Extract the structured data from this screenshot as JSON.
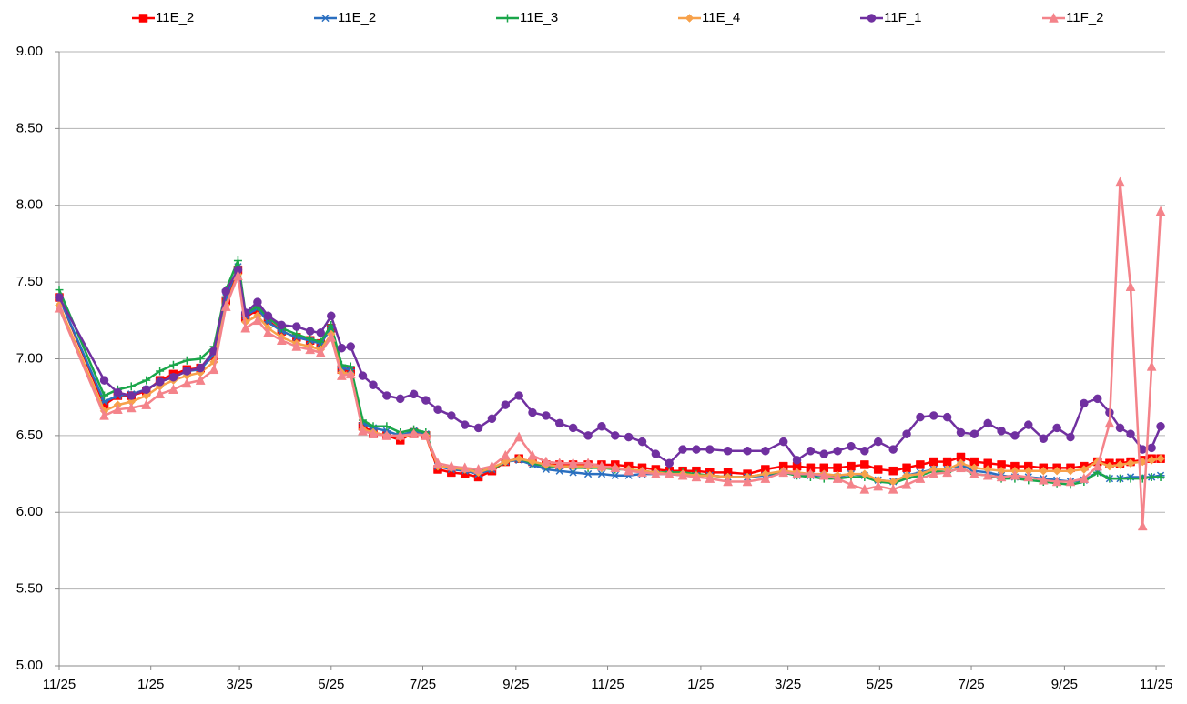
{
  "chart_data": {
    "type": "line",
    "xlim": [
      0,
      736
    ],
    "ylim": [
      5,
      9
    ],
    "yticks": [
      {
        "value": 5,
        "label": "5.00"
      },
      {
        "value": 5.5,
        "label": "5.50"
      },
      {
        "value": 6,
        "label": "6.00"
      },
      {
        "value": 6.5,
        "label": "6.50"
      },
      {
        "value": 7,
        "label": "7.00"
      },
      {
        "value": 7.5,
        "label": "7.50"
      },
      {
        "value": 8,
        "label": "8.00"
      },
      {
        "value": 8.5,
        "label": "8.50"
      },
      {
        "value": 9,
        "label": "9.00"
      }
    ],
    "xticks": [
      {
        "value": 0,
        "label": "11/25"
      },
      {
        "value": 61,
        "label": "1/25"
      },
      {
        "value": 120,
        "label": "3/25"
      },
      {
        "value": 181,
        "label": "5/25"
      },
      {
        "value": 242,
        "label": "7/25"
      },
      {
        "value": 304,
        "label": "9/25"
      },
      {
        "value": 365,
        "label": "11/25"
      },
      {
        "value": 427,
        "label": "1/25"
      },
      {
        "value": 485,
        "label": "3/25"
      },
      {
        "value": 546,
        "label": "5/25"
      },
      {
        "value": 607,
        "label": "7/25"
      },
      {
        "value": 669,
        "label": "9/25"
      },
      {
        "value": 730,
        "label": "11/25"
      }
    ],
    "grid": true,
    "legend": "top",
    "x": [
      0,
      30,
      39,
      48,
      58,
      67,
      76,
      85,
      94,
      103,
      111,
      119,
      124,
      132,
      139,
      148,
      158,
      167,
      174,
      181,
      188,
      194,
      202,
      209,
      218,
      227,
      236,
      244,
      252,
      261,
      270,
      279,
      288,
      297,
      306,
      315,
      324,
      333,
      342,
      352,
      361,
      370,
      379,
      388,
      397,
      406,
      415,
      424,
      433,
      445,
      458,
      470,
      482,
      491,
      500,
      509,
      518,
      527,
      536,
      545,
      555,
      564,
      573,
      582,
      591,
      600,
      609,
      618,
      627,
      636,
      645,
      655,
      664,
      673,
      682,
      691,
      699,
      706,
      713,
      721,
      727,
      733
    ],
    "series": [
      {
        "name": "11E_2",
        "color": "#ff0000",
        "marker": "square",
        "values": [
          7.4,
          6.7,
          6.76,
          6.76,
          6.79,
          6.86,
          6.9,
          6.93,
          6.94,
          7.02,
          7.38,
          7.58,
          7.27,
          7.32,
          7.25,
          7.18,
          7.14,
          7.12,
          7.1,
          7.2,
          6.93,
          6.92,
          6.56,
          6.52,
          6.5,
          6.47,
          6.52,
          6.5,
          6.28,
          6.26,
          6.25,
          6.23,
          6.27,
          6.33,
          6.35,
          6.33,
          6.31,
          6.31,
          6.31,
          6.31,
          6.31,
          6.31,
          6.3,
          6.29,
          6.28,
          6.27,
          6.27,
          6.27,
          6.26,
          6.26,
          6.25,
          6.28,
          6.3,
          6.3,
          6.29,
          6.29,
          6.29,
          6.3,
          6.31,
          6.28,
          6.27,
          6.29,
          6.31,
          6.33,
          6.33,
          6.36,
          6.33,
          6.32,
          6.31,
          6.3,
          6.3,
          6.29,
          6.29,
          6.29,
          6.3,
          6.33,
          6.32,
          6.32,
          6.33,
          6.34,
          6.35,
          6.35
        ]
      },
      {
        "name": "11E_2",
        "color": "#2a6fc0",
        "marker": "asterisk",
        "values": [
          7.4,
          6.72,
          6.76,
          6.77,
          6.8,
          6.85,
          6.88,
          6.92,
          6.93,
          7.03,
          7.4,
          7.6,
          7.28,
          7.33,
          7.24,
          7.18,
          7.14,
          7.12,
          7.1,
          7.2,
          6.94,
          6.93,
          6.58,
          6.55,
          6.53,
          6.5,
          6.53,
          6.51,
          6.3,
          6.28,
          6.27,
          6.25,
          6.28,
          6.33,
          6.34,
          6.31,
          6.28,
          6.27,
          6.26,
          6.25,
          6.25,
          6.24,
          6.24,
          6.25,
          6.25,
          6.25,
          6.24,
          6.24,
          6.24,
          6.23,
          6.23,
          6.24,
          6.26,
          6.24,
          6.24,
          6.24,
          6.23,
          6.25,
          6.24,
          6.21,
          6.2,
          6.24,
          6.26,
          6.28,
          6.28,
          6.31,
          6.27,
          6.26,
          6.24,
          6.23,
          6.23,
          6.22,
          6.21,
          6.2,
          6.21,
          6.26,
          6.22,
          6.22,
          6.23,
          6.23,
          6.23,
          6.24
        ]
      },
      {
        "name": "11E_3",
        "color": "#1aa64a",
        "marker": "plus",
        "values": [
          7.45,
          6.76,
          6.8,
          6.82,
          6.86,
          6.92,
          6.96,
          6.99,
          7.0,
          7.08,
          7.45,
          7.64,
          7.3,
          7.34,
          7.27,
          7.2,
          7.16,
          7.13,
          7.11,
          7.22,
          6.96,
          6.95,
          6.6,
          6.56,
          6.56,
          6.52,
          6.54,
          6.52,
          6.3,
          6.29,
          6.28,
          6.27,
          6.28,
          6.33,
          6.35,
          6.32,
          6.3,
          6.3,
          6.29,
          6.29,
          6.29,
          6.28,
          6.28,
          6.27,
          6.26,
          6.26,
          6.26,
          6.25,
          6.24,
          6.23,
          6.23,
          6.25,
          6.26,
          6.24,
          6.23,
          6.22,
          6.22,
          6.23,
          6.23,
          6.2,
          6.19,
          6.22,
          6.24,
          6.27,
          6.26,
          6.29,
          6.25,
          6.24,
          6.22,
          6.22,
          6.21,
          6.2,
          6.19,
          6.18,
          6.2,
          6.26,
          6.22,
          6.22,
          6.22,
          6.22,
          6.23,
          6.23
        ]
      },
      {
        "name": "11E_4",
        "color": "#f7a14a",
        "marker": "diamond",
        "values": [
          7.35,
          6.66,
          6.7,
          6.72,
          6.76,
          6.82,
          6.86,
          6.89,
          6.91,
          6.98,
          7.35,
          7.55,
          7.24,
          7.28,
          7.2,
          7.14,
          7.1,
          7.08,
          7.06,
          7.16,
          6.91,
          6.9,
          6.54,
          6.52,
          6.5,
          6.49,
          6.51,
          6.5,
          6.3,
          6.29,
          6.28,
          6.26,
          6.29,
          6.33,
          6.35,
          6.33,
          6.31,
          6.3,
          6.3,
          6.3,
          6.29,
          6.29,
          6.28,
          6.27,
          6.26,
          6.25,
          6.25,
          6.24,
          6.24,
          6.23,
          6.23,
          6.25,
          6.27,
          6.26,
          6.25,
          6.25,
          6.24,
          6.25,
          6.25,
          6.21,
          6.2,
          6.24,
          6.25,
          6.28,
          6.28,
          6.32,
          6.29,
          6.28,
          6.27,
          6.27,
          6.27,
          6.27,
          6.27,
          6.27,
          6.28,
          6.33,
          6.3,
          6.31,
          6.32,
          6.33,
          6.34,
          6.35
        ]
      },
      {
        "name": "11F_1",
        "color": "#7030a0",
        "marker": "circle",
        "values": [
          7.4,
          6.86,
          6.78,
          6.76,
          6.8,
          6.85,
          6.88,
          6.92,
          6.94,
          7.05,
          7.44,
          7.58,
          7.3,
          7.37,
          7.28,
          7.22,
          7.21,
          7.18,
          7.17,
          7.28,
          7.07,
          7.08,
          6.89,
          6.83,
          6.76,
          6.74,
          6.77,
          6.73,
          6.67,
          6.63,
          6.57,
          6.55,
          6.61,
          6.7,
          6.76,
          6.65,
          6.63,
          6.58,
          6.55,
          6.5,
          6.56,
          6.5,
          6.49,
          6.46,
          6.38,
          6.32,
          6.41,
          6.41,
          6.41,
          6.4,
          6.4,
          6.4,
          6.46,
          6.34,
          6.4,
          6.38,
          6.4,
          6.43,
          6.4,
          6.46,
          6.41,
          6.51,
          6.62,
          6.63,
          6.62,
          6.52,
          6.51,
          6.58,
          6.53,
          6.5,
          6.57,
          6.48,
          6.55,
          6.49,
          6.71,
          6.74,
          6.65,
          6.55,
          6.51,
          6.41,
          6.42,
          6.56
        ]
      },
      {
        "name": "11F_2",
        "color": "#f4838a",
        "marker": "triangle",
        "values": [
          7.33,
          6.63,
          6.67,
          6.68,
          6.7,
          6.77,
          6.8,
          6.84,
          6.86,
          6.93,
          7.34,
          7.54,
          7.2,
          7.25,
          7.17,
          7.12,
          7.08,
          7.06,
          7.04,
          7.14,
          6.89,
          6.9,
          6.53,
          6.51,
          6.5,
          6.5,
          6.51,
          6.5,
          6.32,
          6.3,
          6.29,
          6.28,
          6.3,
          6.37,
          6.49,
          6.37,
          6.33,
          6.32,
          6.32,
          6.32,
          6.3,
          6.29,
          6.27,
          6.26,
          6.25,
          6.25,
          6.24,
          6.23,
          6.22,
          6.2,
          6.2,
          6.22,
          6.26,
          6.25,
          6.25,
          6.24,
          6.22,
          6.18,
          6.15,
          6.17,
          6.15,
          6.18,
          6.22,
          6.25,
          6.26,
          6.29,
          6.25,
          6.24,
          6.23,
          6.24,
          6.23,
          6.21,
          6.2,
          6.2,
          6.22,
          6.3,
          6.58,
          8.15,
          7.47,
          5.91,
          6.95,
          7.96
        ]
      }
    ]
  }
}
